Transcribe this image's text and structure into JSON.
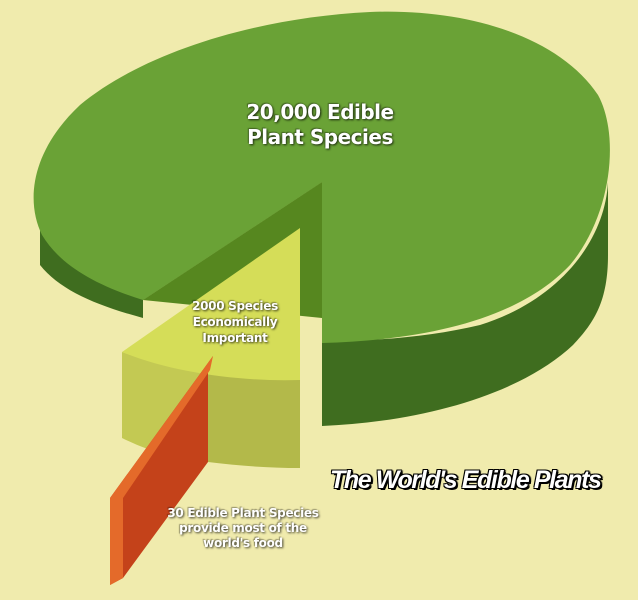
{
  "chart_data": {
    "type": "pie",
    "title": "The World's Edible Plants",
    "slices": [
      {
        "name": "20,000 Edible Plant Species",
        "value": 20000,
        "label_lines": [
          "20,000 Edible",
          "Plant Species"
        ],
        "color": "#6aa236"
      },
      {
        "name": "2000 Species Economically Important",
        "value": 2000,
        "label_lines": [
          "2000 Species",
          "Economically",
          "Important"
        ],
        "color": "#d5dd58"
      },
      {
        "name": "30 Edible Plant Species provide most of the world's food",
        "value": 30,
        "label_lines": [
          "30 Edible Plant Species",
          "provide most of the",
          "world's food"
        ],
        "color": "#e46a2a"
      }
    ],
    "legend": false,
    "grid": false
  },
  "colors": {
    "background": "#f0ebad",
    "main_top": "#6aa236",
    "main_side": "#3f6d1f",
    "econ_top": "#d5dd58",
    "econ_side": "#b3b94a",
    "food": "#e46a2a",
    "food_side": "#c4421a"
  }
}
